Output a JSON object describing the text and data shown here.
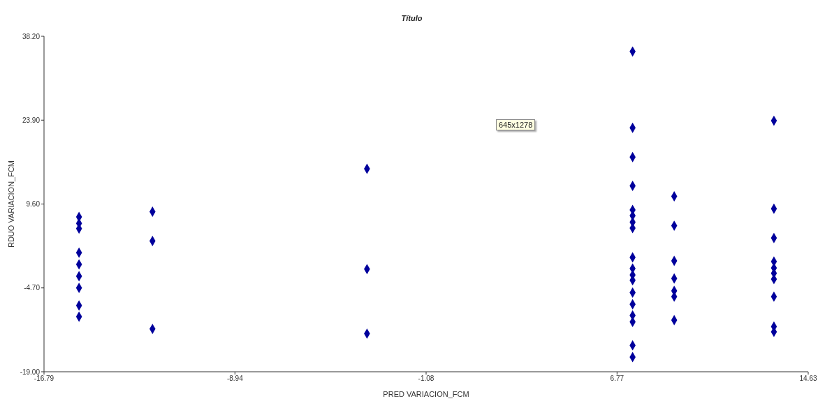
{
  "chart_data": {
    "type": "scatter",
    "title": "Título",
    "xlabel": "PRED VARIACION_FCM",
    "ylabel": "RDUO VARIACION_FCM",
    "annotations": [
      "645x1278"
    ],
    "marker": "diamond",
    "grid": false,
    "legend": false,
    "x": [
      -15.35,
      -15.35,
      -15.35,
      -15.35,
      -15.35,
      -15.35,
      -15.35,
      -15.35,
      -15.35,
      -12.33,
      -12.33,
      -12.33,
      -3.51,
      -3.51,
      -3.51,
      7.41,
      7.41,
      7.41,
      7.41,
      7.41,
      7.41,
      7.41,
      7.41,
      7.41,
      7.41,
      7.41,
      7.41,
      7.41,
      7.41,
      7.41,
      7.41,
      7.41,
      7.41,
      9.12,
      9.12,
      9.12,
      9.12,
      9.12,
      9.12,
      9.12,
      13.22,
      13.22,
      13.22,
      13.22,
      13.22,
      13.22,
      13.22,
      13.22,
      13.22,
      13.22
    ],
    "series": [
      {
        "color": "#00009c",
        "values": [
          7.4,
          6.3,
          5.4,
          1.3,
          -0.7,
          -2.7,
          -4.7,
          -7.7,
          -9.6,
          8.3,
          3.3,
          -11.7,
          15.6,
          -1.5,
          -12.5,
          35.6,
          22.6,
          17.6,
          12.7,
          8.6,
          7.6,
          6.5,
          5.5,
          0.5,
          -1.4,
          -2.5,
          -3.4,
          -5.5,
          -7.5,
          -9.4,
          -10.5,
          -14.5,
          -16.5,
          10.9,
          5.9,
          -0.1,
          -3.1,
          -5.2,
          -6.2,
          -10.2,
          23.8,
          8.8,
          3.8,
          -0.2,
          -1.3,
          -2.2,
          -3.2,
          -6.2,
          -11.3,
          -12.2
        ]
      }
    ],
    "xlim": [
      -16.79,
      14.63
    ],
    "xticks": [
      -16.79,
      -8.94,
      -1.08,
      6.77,
      14.63
    ],
    "ylim": [
      -19,
      38.2
    ],
    "yticks": [
      {
        "value": -19,
        "label": "-19.00"
      },
      {
        "value": -4.7,
        "label": "-4.70"
      },
      {
        "value": 9.6,
        "label": "9.60"
      },
      {
        "value": 23.9,
        "label": "23.90"
      },
      {
        "value": 38.2,
        "label": "38.20"
      }
    ]
  }
}
